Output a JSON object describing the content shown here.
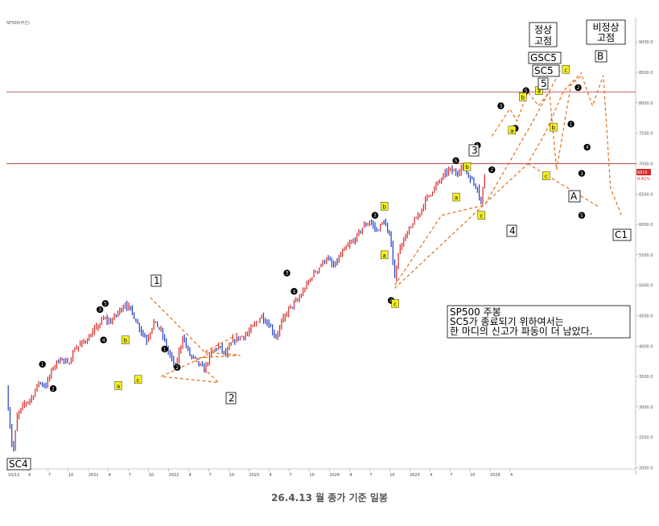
{
  "chart_data": {
    "type": "line",
    "title": "SP500 주봉",
    "subtitle": "",
    "caption": "26.4.13 월 종가 기준 일봉",
    "index_label": "SP500(주간)",
    "last_price_label": "6815",
    "last_price_pct": "0.41%",
    "x_ticks": [
      "10/12",
      "4",
      "7",
      "10",
      "2021",
      "4",
      "7",
      "10",
      "2022",
      "4",
      "7",
      "10",
      "2023",
      "4",
      "7",
      "10",
      "2024",
      "4",
      "7",
      "10",
      "2025",
      "4",
      "7",
      "10",
      "2026",
      "4"
    ],
    "y_ticks": [
      2000,
      2500,
      3000,
      3500,
      4000,
      4500,
      5000,
      5500,
      6000,
      6500,
      7000,
      7500,
      8000,
      8500,
      9000
    ],
    "ylim": [
      1980,
      9400
    ],
    "grid": false,
    "horizontal_levels": [
      8180,
      7000
    ],
    "series": [
      {
        "values": [
          [
            0,
            3300
          ],
          [
            3,
            2400
          ],
          [
            4,
            2300
          ],
          [
            6,
            2850
          ],
          [
            10,
            3050
          ],
          [
            14,
            3150
          ],
          [
            18,
            3400
          ],
          [
            22,
            3350
          ],
          [
            26,
            3650
          ],
          [
            30,
            3800
          ],
          [
            34,
            3700
          ],
          [
            38,
            3950
          ],
          [
            42,
            4050
          ],
          [
            46,
            4150
          ],
          [
            50,
            4300
          ],
          [
            54,
            4450
          ],
          [
            58,
            4400
          ],
          [
            62,
            4550
          ],
          [
            66,
            4700
          ],
          [
            70,
            4550
          ],
          [
            74,
            4300
          ],
          [
            78,
            4100
          ],
          [
            82,
            4400
          ],
          [
            86,
            4250
          ],
          [
            90,
            3900
          ],
          [
            94,
            3650
          ],
          [
            98,
            4150
          ],
          [
            102,
            3850
          ],
          [
            106,
            3750
          ],
          [
            110,
            3600
          ],
          [
            114,
            3900
          ],
          [
            118,
            4000
          ],
          [
            122,
            3850
          ],
          [
            126,
            4100
          ],
          [
            130,
            4150
          ],
          [
            134,
            4200
          ],
          [
            138,
            4350
          ],
          [
            142,
            4500
          ],
          [
            146,
            4350
          ],
          [
            150,
            4150
          ],
          [
            154,
            4450
          ],
          [
            158,
            4650
          ],
          [
            162,
            4750
          ],
          [
            166,
            4950
          ],
          [
            170,
            5150
          ],
          [
            174,
            5300
          ],
          [
            178,
            5450
          ],
          [
            182,
            5300
          ],
          [
            186,
            5500
          ],
          [
            190,
            5650
          ],
          [
            194,
            5750
          ],
          [
            198,
            5950
          ],
          [
            202,
            6050
          ],
          [
            206,
            5900
          ],
          [
            210,
            6050
          ],
          [
            214,
            5700
          ],
          [
            216,
            5100
          ],
          [
            218,
            5550
          ],
          [
            222,
            5800
          ],
          [
            226,
            6000
          ],
          [
            230,
            6200
          ],
          [
            234,
            6450
          ],
          [
            238,
            6600
          ],
          [
            242,
            6750
          ],
          [
            246,
            6900
          ],
          [
            250,
            6850
          ],
          [
            254,
            6950
          ],
          [
            258,
            6750
          ],
          [
            262,
            6600
          ],
          [
            264,
            6350
          ],
          [
            266,
            6820
          ]
        ]
      },
      {
        "values": [
          [
            216,
            5000
          ],
          [
            242,
            6150
          ],
          [
            266,
            6320
          ],
          [
            292,
            7650
          ],
          [
            308,
            8520
          ]
        ]
      },
      {
        "values": [
          [
            216,
            4950
          ],
          [
            290,
            7000
          ],
          [
            300,
            7520
          ],
          [
            310,
            8200
          ],
          [
            320,
            8500
          ]
        ]
      },
      {
        "values": [
          [
            290,
            7000
          ],
          [
            330,
            6280
          ]
        ]
      },
      {
        "values": [
          [
            270,
            7450
          ],
          [
            280,
            7900
          ],
          [
            284,
            7700
          ],
          [
            290,
            8180
          ],
          [
            296,
            7950
          ],
          [
            302,
            8180
          ],
          [
            306,
            6900
          ],
          [
            314,
            8300
          ],
          [
            320,
            8450
          ],
          [
            326,
            7950
          ],
          [
            332,
            8450
          ],
          [
            336,
            6600
          ],
          [
            342,
            6160
          ]
        ]
      },
      {
        "values": [
          [
            80,
            4800
          ],
          [
            112,
            3850
          ],
          [
            86,
            3500
          ],
          [
            118,
            3400
          ],
          [
            104,
            3800
          ],
          [
            130,
            3850
          ],
          [
            110,
            3900
          ],
          [
            126,
            4150
          ]
        ]
      }
    ],
    "annotations": {
      "boxed_wave_labels": [
        "SC4",
        "1",
        "2",
        "3",
        "4",
        "5",
        "A",
        "B",
        "C1"
      ],
      "boxed_text": [
        "정상\n고점",
        "비정상\n고점",
        "GSC5",
        "SC5"
      ],
      "minor_labels": [
        "a",
        "b",
        "c"
      ],
      "note_lines": [
        "SP500 주봉",
        "SC5가 종료되기 위하여서는",
        "한 마디의 신고가 파동이 더 남았다."
      ]
    },
    "colors": {
      "up_bar": "#d62828",
      "down_bar": "#1f3fc4",
      "projection": "#e0701e",
      "level_line": "#b23030",
      "highlight": "#f5f01e"
    }
  }
}
